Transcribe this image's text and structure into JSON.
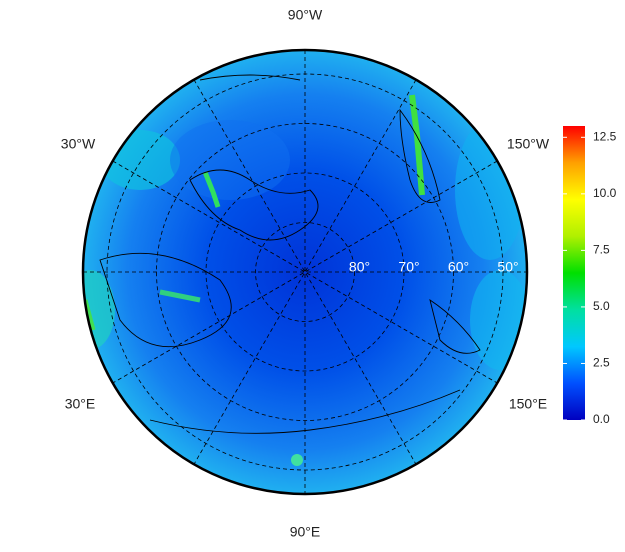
{
  "map": {
    "lon_labels": [
      "90°W",
      "30°W",
      "150°W",
      "30°E",
      "150°E",
      "90°E"
    ],
    "lat_circles": [
      {
        "value": 80,
        "label": "80°"
      },
      {
        "value": 70,
        "label": "70°"
      },
      {
        "value": 60,
        "label": "60°"
      },
      {
        "value": 50,
        "label": "50°"
      }
    ],
    "colorbar": {
      "lim": [
        0,
        13
      ],
      "ticks": [
        {
          "value": 0,
          "label": "0.0"
        },
        {
          "value": 2.5,
          "label": "2.5"
        },
        {
          "value": 5,
          "label": "5.0"
        },
        {
          "value": 7.5,
          "label": "7.5"
        },
        {
          "value": 10,
          "label": "10.0"
        },
        {
          "value": 12.5,
          "label": "12.5"
        }
      ],
      "colors": [
        "#0000c0",
        "#0050ff",
        "#00c8ff",
        "#00e0a0",
        "#00e000",
        "#b0f000",
        "#ffff00",
        "#ffa000",
        "#ff0000"
      ]
    }
  }
}
